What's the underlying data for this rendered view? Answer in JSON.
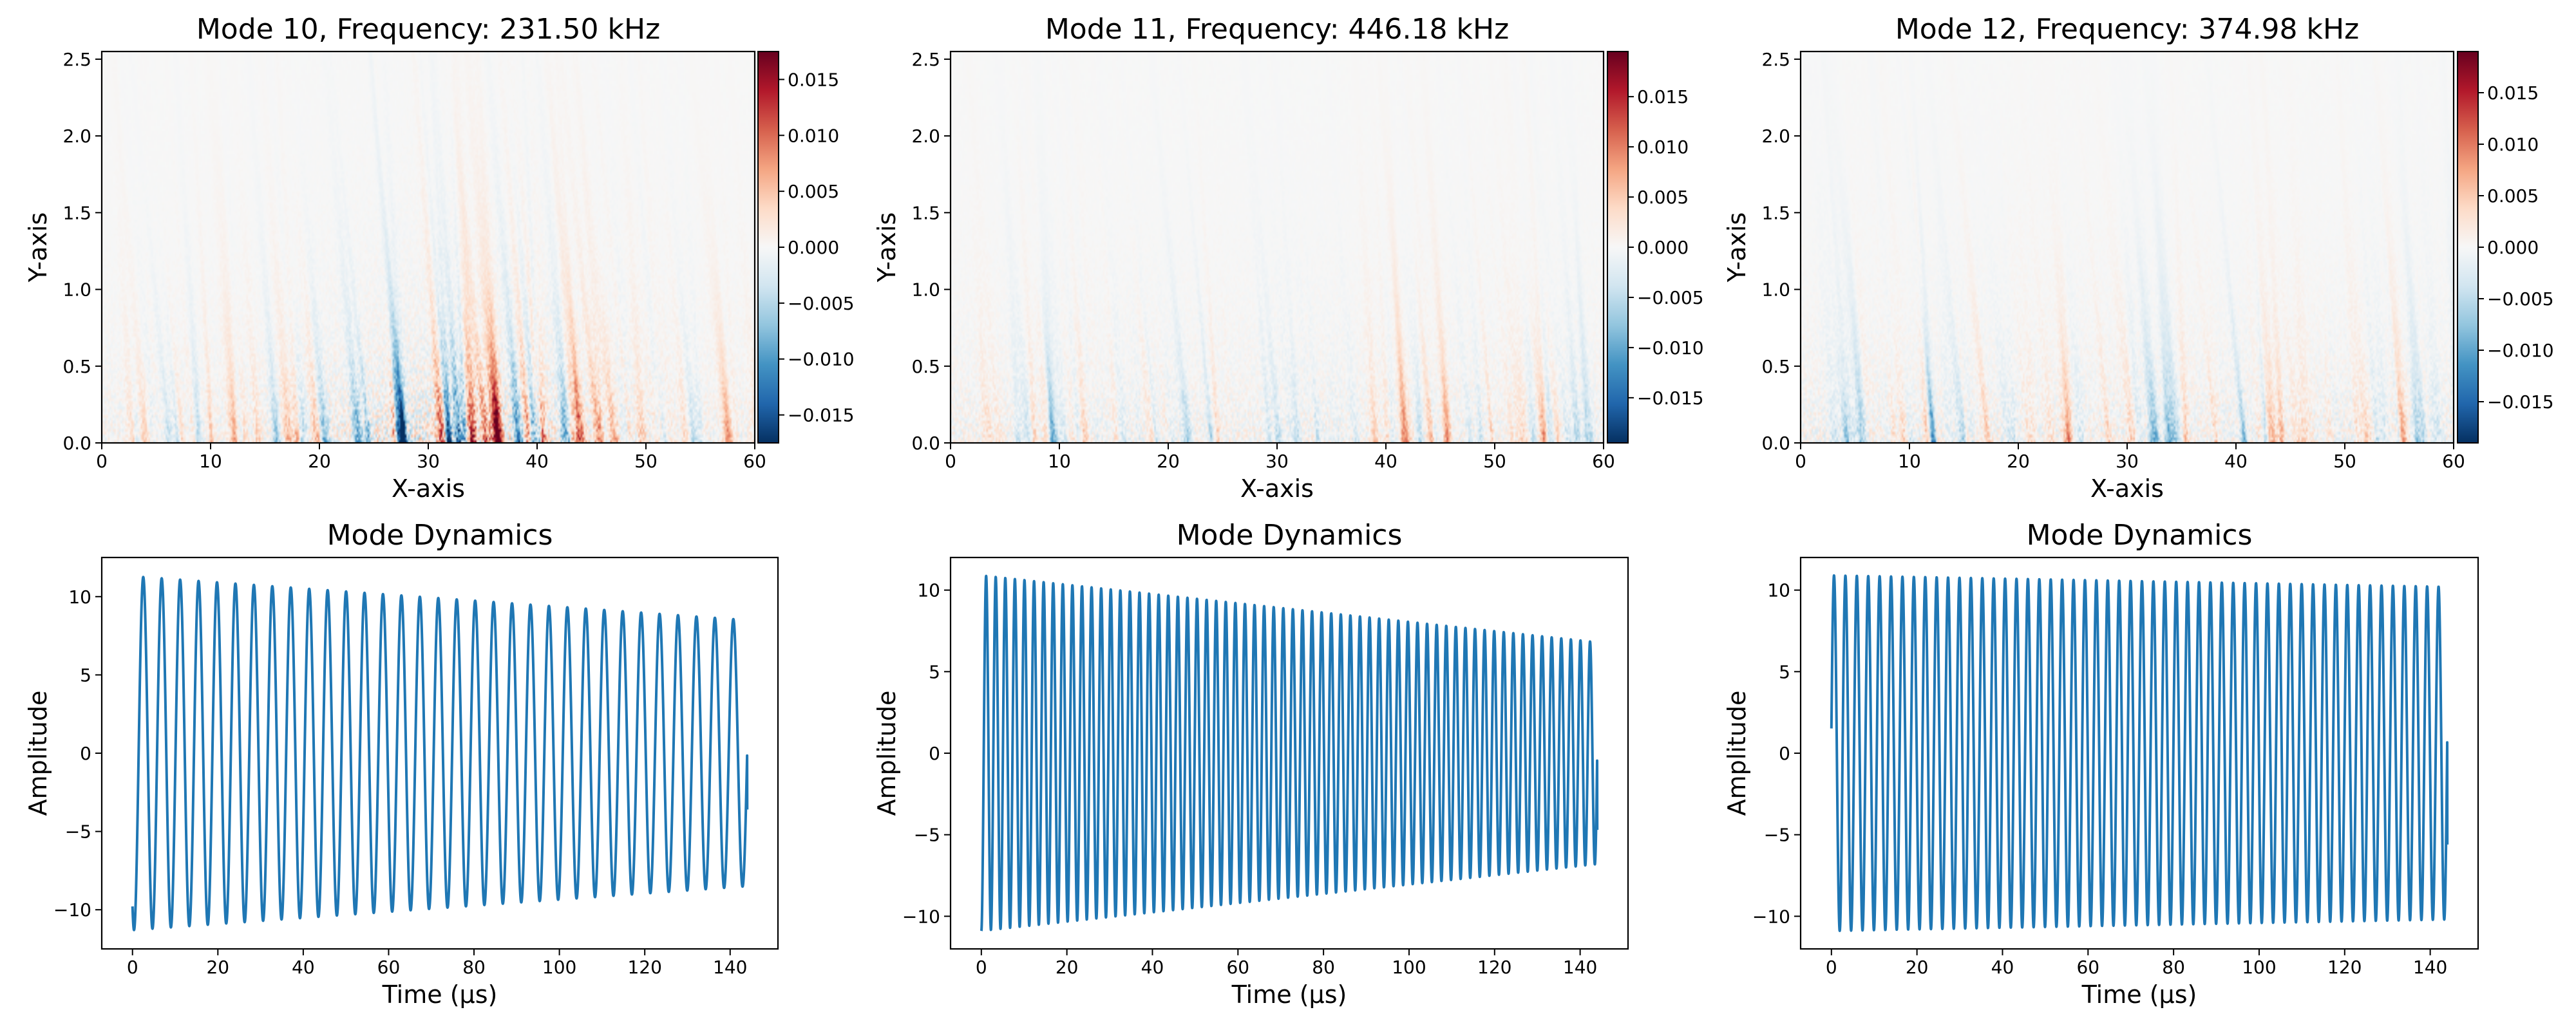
{
  "colors": {
    "line": "#1f77b4",
    "cmap_low": "#053061",
    "cmap_mid": "#f7f7f7",
    "cmap_high": "#67001f"
  },
  "chart_data": [
    {
      "type": "heatmap",
      "title": "Mode 10, Frequency: 231.50 kHz",
      "xlabel": "X-axis",
      "ylabel": "Y-axis",
      "xlim": [
        0,
        60
      ],
      "ylim": [
        0,
        2.55
      ],
      "xticks": [
        "0",
        "10",
        "20",
        "30",
        "40",
        "50",
        "60"
      ],
      "yticks": [
        "0.0",
        "0.5",
        "1.0",
        "1.5",
        "2.0",
        "2.5"
      ],
      "clim": [
        -0.0175,
        0.0175
      ],
      "colorbar_ticks": [
        "−0.015",
        "−0.010",
        "−0.005",
        "0.000",
        "0.005",
        "0.010",
        "0.015"
      ],
      "colormap": "RdBu_r",
      "max_abs": 0.017
    },
    {
      "type": "heatmap",
      "title": "Mode 11, Frequency: 446.18 kHz",
      "xlabel": "X-axis",
      "ylabel": "Y-axis",
      "xlim": [
        0,
        60
      ],
      "ylim": [
        0,
        2.55
      ],
      "xticks": [
        "0",
        "10",
        "20",
        "30",
        "40",
        "50",
        "60"
      ],
      "yticks": [
        "0.0",
        "0.5",
        "1.0",
        "1.5",
        "2.0",
        "2.5"
      ],
      "clim": [
        -0.0195,
        0.0195
      ],
      "colorbar_ticks": [
        "−0.015",
        "−0.010",
        "−0.005",
        "0.000",
        "0.005",
        "0.010",
        "0.015"
      ],
      "colormap": "RdBu_r",
      "max_abs": 0.012
    },
    {
      "type": "heatmap",
      "title": "Mode 12, Frequency: 374.98 kHz",
      "xlabel": "X-axis",
      "ylabel": "Y-axis",
      "xlim": [
        0,
        60
      ],
      "ylim": [
        0,
        2.55
      ],
      "xticks": [
        "0",
        "10",
        "20",
        "30",
        "40",
        "50",
        "60"
      ],
      "yticks": [
        "0.0",
        "0.5",
        "1.0",
        "1.5",
        "2.0",
        "2.5"
      ],
      "clim": [
        -0.019,
        0.019
      ],
      "colorbar_ticks": [
        "−0.015",
        "−0.010",
        "−0.005",
        "0.000",
        "0.005",
        "0.010",
        "0.015"
      ],
      "colormap": "RdBu_r",
      "max_abs": 0.013
    },
    {
      "type": "line",
      "title": "Mode Dynamics",
      "xlabel": "Time (μs)",
      "ylabel": "Amplitude",
      "xlim": [
        -7.2,
        151.2
      ],
      "ylim": [
        -12.5,
        12.5
      ],
      "xticks": [
        0,
        20,
        40,
        60,
        80,
        100,
        120,
        140
      ],
      "yticks": [
        -10,
        -5,
        0,
        5,
        10
      ],
      "series": [
        {
          "frequency_khz": 231.5,
          "t_start": 0,
          "t_end": 144,
          "amp_start": 11.3,
          "amp_end": 8.5,
          "phase_deg": 240,
          "end_value": -3.6
        }
      ]
    },
    {
      "type": "line",
      "title": "Mode Dynamics",
      "xlabel": "Time (μs)",
      "ylabel": "Amplitude",
      "xlim": [
        -7.2,
        151.2
      ],
      "ylim": [
        -12,
        12
      ],
      "xticks": [
        0,
        20,
        40,
        60,
        80,
        100,
        120,
        140
      ],
      "yticks": [
        -10,
        -5,
        0,
        5,
        10
      ],
      "series": [
        {
          "frequency_khz": 446.18,
          "t_start": 0,
          "t_end": 144,
          "amp_start": 10.9,
          "amp_end": 6.8,
          "phase_deg": 270,
          "end_value": -4.7
        }
      ]
    },
    {
      "type": "line",
      "title": "Mode Dynamics",
      "xlabel": "Time (μs)",
      "ylabel": "Amplitude",
      "xlim": [
        -7.2,
        151.2
      ],
      "ylim": [
        -12,
        12
      ],
      "xticks": [
        0,
        20,
        40,
        60,
        80,
        100,
        120,
        140
      ],
      "yticks": [
        -10,
        -5,
        0,
        5,
        10
      ],
      "series": [
        {
          "frequency_khz": 374.98,
          "t_start": 0,
          "t_end": 144,
          "amp_start": 10.9,
          "amp_end": 10.2,
          "phase_deg": 8,
          "end_value": -5.6
        }
      ]
    }
  ]
}
